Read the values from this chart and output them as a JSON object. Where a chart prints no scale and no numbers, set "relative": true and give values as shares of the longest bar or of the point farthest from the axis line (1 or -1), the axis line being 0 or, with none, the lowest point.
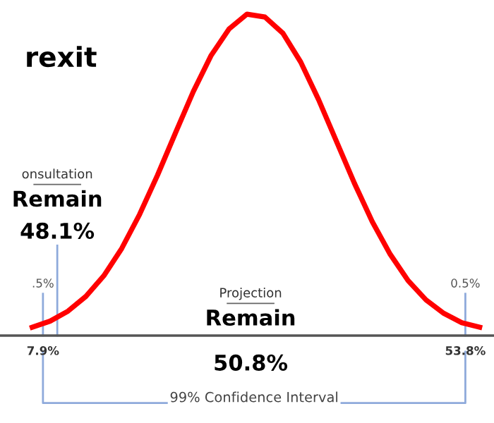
{
  "chart_data": {
    "type": "line",
    "title": "rexit",
    "relative": true,
    "categories": [
      null,
      null,
      null,
      null,
      null,
      null,
      null,
      null,
      null,
      null,
      null,
      null,
      null,
      null,
      null,
      null,
      null,
      null,
      null,
      null,
      null,
      null,
      null,
      null,
      null,
      null
    ],
    "series": [
      {
        "color": "#ff0000",
        "values": [
          0.026,
          0.045,
          0.076,
          0.122,
          0.186,
          0.271,
          0.377,
          0.499,
          0.63,
          0.759,
          0.872,
          0.954,
          1,
          0.991,
          0.941,
          0.851,
          0.734,
          0.604,
          0.474,
          0.354,
          0.253,
          0.171,
          0.111,
          0.069,
          0.04,
          0.026
        ]
      }
    ],
    "annotations": [
      "onsultation",
      "Remain",
      "48.1%",
      ".5%",
      "Projection",
      "Remain",
      "0.5%",
      "7.9%",
      "50.8%",
      "53.8%",
      "99% Confidence Interval"
    ],
    "grid": false,
    "legend": false,
    "marker": "none",
    "line_style": "solid"
  }
}
